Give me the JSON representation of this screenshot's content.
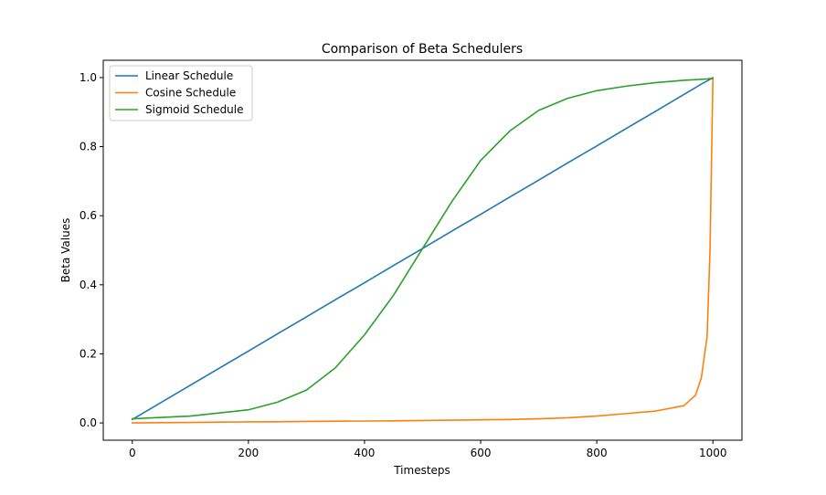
{
  "chart_data": {
    "type": "line",
    "title": "Comparison of Beta Schedulers",
    "xlabel": "Timesteps",
    "ylabel": "Beta Values",
    "xlim": [
      -50,
      1050
    ],
    "ylim": [
      -0.05,
      1.05
    ],
    "xticks": [
      0,
      200,
      400,
      600,
      800,
      1000
    ],
    "xtick_labels": [
      "0",
      "200",
      "400",
      "600",
      "800",
      "1000"
    ],
    "yticks": [
      0.0,
      0.2,
      0.4,
      0.6,
      0.8,
      1.0
    ],
    "ytick_labels": [
      "0.0",
      "0.2",
      "0.4",
      "0.6",
      "0.8",
      "1.0"
    ],
    "grid": false,
    "legend_position": "top-left",
    "x": [
      0,
      100,
      200,
      250,
      300,
      350,
      400,
      450,
      500,
      550,
      600,
      650,
      700,
      750,
      800,
      850,
      900,
      950,
      970,
      980,
      990,
      995,
      999,
      1000
    ],
    "series": [
      {
        "name": "Linear Schedule",
        "color": "#1f77b4",
        "values": [
          0.01,
          0.109,
          0.208,
          0.258,
          0.307,
          0.357,
          0.406,
          0.456,
          0.505,
          0.555,
          0.604,
          0.654,
          0.703,
          0.753,
          0.802,
          0.852,
          0.901,
          0.951,
          0.971,
          0.981,
          0.99,
          0.995,
          0.999,
          1.0
        ]
      },
      {
        "name": "Cosine Schedule",
        "color": "#ff7f0e",
        "values": [
          0.0,
          0.0015,
          0.003,
          0.0035,
          0.0043,
          0.005,
          0.0055,
          0.006,
          0.007,
          0.008,
          0.009,
          0.01,
          0.012,
          0.015,
          0.02,
          0.027,
          0.034,
          0.05,
          0.08,
          0.13,
          0.25,
          0.5,
          0.9,
          1.0
        ]
      },
      {
        "name": "Sigmoid Schedule",
        "color": "#2ca02c",
        "values": [
          0.012,
          0.02,
          0.038,
          0.06,
          0.095,
          0.16,
          0.255,
          0.37,
          0.505,
          0.64,
          0.76,
          0.845,
          0.905,
          0.94,
          0.962,
          0.975,
          0.985,
          0.992,
          0.994,
          0.995,
          0.996,
          0.997,
          0.997,
          0.997
        ]
      }
    ]
  }
}
